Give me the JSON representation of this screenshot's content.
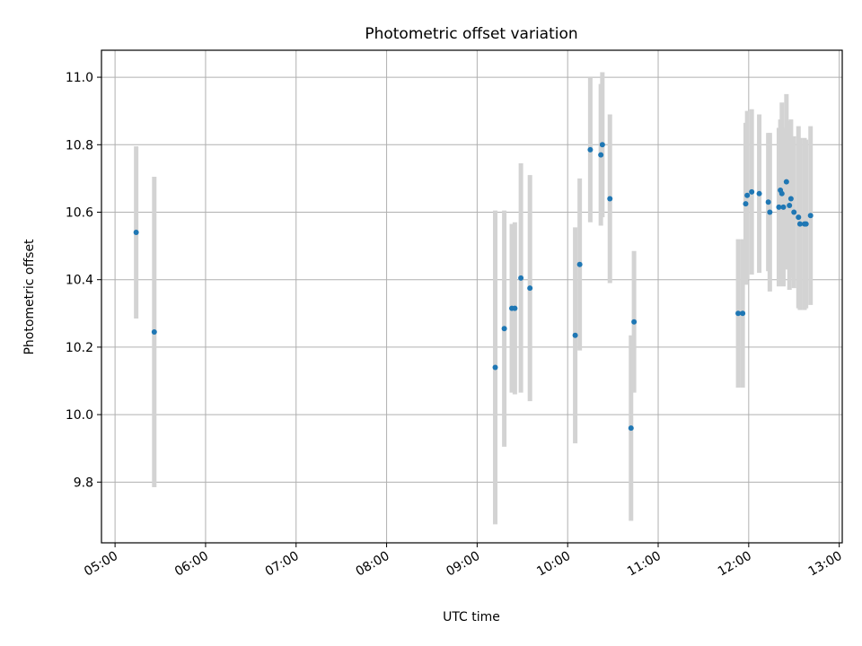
{
  "chart_data": {
    "type": "scatter",
    "title": "Photometric offset variation",
    "xlabel": "UTC time",
    "ylabel": "Photometric offset",
    "x_axis": "time-of-day",
    "xlim": [
      "04:51",
      "13:02"
    ],
    "ylim": [
      9.62,
      11.08
    ],
    "x_ticks": [
      "05:00",
      "06:00",
      "07:00",
      "08:00",
      "09:00",
      "10:00",
      "11:00",
      "12:00",
      "13:00"
    ],
    "y_ticks": [
      "9.8",
      "10.0",
      "10.2",
      "10.4",
      "10.6",
      "10.8",
      "11.0"
    ],
    "grid": true,
    "legend": "none",
    "colors": {
      "points": "#1f77b4",
      "errorbars": "#d3d3d3",
      "grid": "#b0b0b0"
    },
    "points": [
      {
        "x": "05:14",
        "y": 10.54,
        "err": 0.255
      },
      {
        "x": "05:26",
        "y": 10.245,
        "err": 0.46
      },
      {
        "x": "09:12",
        "y": 10.14,
        "err": 0.465
      },
      {
        "x": "09:18",
        "y": 10.255,
        "err": 0.35
      },
      {
        "x": "09:23",
        "y": 10.315,
        "err": 0.25
      },
      {
        "x": "09:25",
        "y": 10.315,
        "err": 0.255
      },
      {
        "x": "09:29",
        "y": 10.405,
        "err": 0.34
      },
      {
        "x": "09:35",
        "y": 10.375,
        "err": 0.335
      },
      {
        "x": "10:05",
        "y": 10.235,
        "err": 0.32
      },
      {
        "x": "10:08",
        "y": 10.445,
        "err": 0.255
      },
      {
        "x": "10:15",
        "y": 10.785,
        "err": 0.215
      },
      {
        "x": "10:22",
        "y": 10.77,
        "err": 0.21
      },
      {
        "x": "10:23",
        "y": 10.8,
        "err": 0.215
      },
      {
        "x": "10:28",
        "y": 10.64,
        "err": 0.25
      },
      {
        "x": "10:42",
        "y": 9.96,
        "err": 0.275
      },
      {
        "x": "10:44",
        "y": 10.275,
        "err": 0.21
      },
      {
        "x": "11:53",
        "y": 10.3,
        "err": 0.22
      },
      {
        "x": "11:56",
        "y": 10.3,
        "err": 0.22
      },
      {
        "x": "11:58",
        "y": 10.625,
        "err": 0.24
      },
      {
        "x": "11:59",
        "y": 10.65,
        "err": 0.25
      },
      {
        "x": "12:02",
        "y": 10.66,
        "err": 0.245
      },
      {
        "x": "12:07",
        "y": 10.655,
        "err": 0.235
      },
      {
        "x": "12:13",
        "y": 10.63,
        "err": 0.205
      },
      {
        "x": "12:14",
        "y": 10.6,
        "err": 0.235
      },
      {
        "x": "12:20",
        "y": 10.615,
        "err": 0.235
      },
      {
        "x": "12:21",
        "y": 10.665,
        "err": 0.21
      },
      {
        "x": "12:22",
        "y": 10.655,
        "err": 0.27
      },
      {
        "x": "12:23",
        "y": 10.615,
        "err": 0.235
      },
      {
        "x": "12:25",
        "y": 10.69,
        "err": 0.26
      },
      {
        "x": "12:27",
        "y": 10.62,
        "err": 0.25
      },
      {
        "x": "12:28",
        "y": 10.64,
        "err": 0.235
      },
      {
        "x": "12:30",
        "y": 10.6,
        "err": 0.225
      },
      {
        "x": "12:33",
        "y": 10.585,
        "err": 0.27
      },
      {
        "x": "12:34",
        "y": 10.565,
        "err": 0.255
      },
      {
        "x": "12:37",
        "y": 10.565,
        "err": 0.255
      },
      {
        "x": "12:38",
        "y": 10.565,
        "err": 0.25
      },
      {
        "x": "12:41",
        "y": 10.59,
        "err": 0.265
      }
    ]
  }
}
